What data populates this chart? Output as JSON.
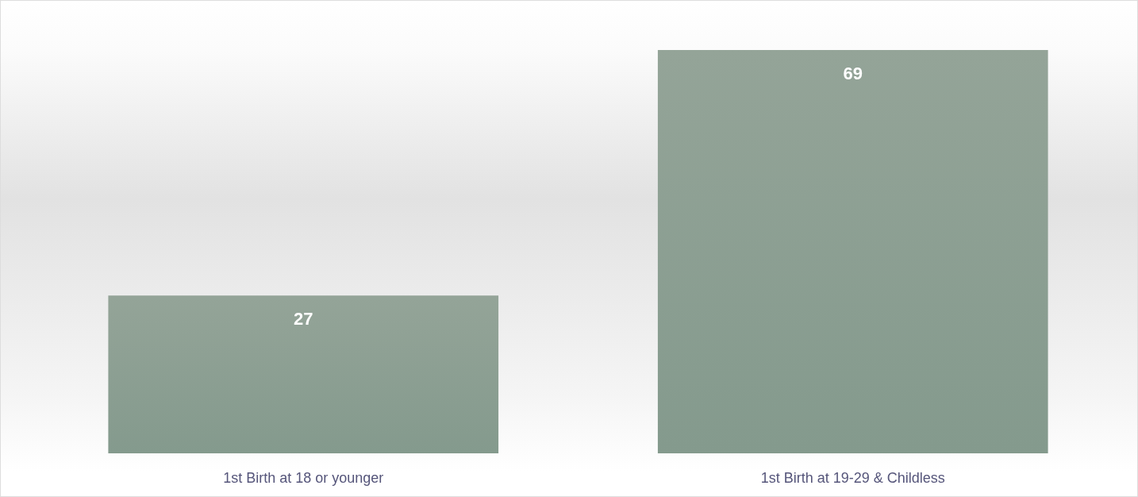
{
  "chart_data": {
    "type": "bar",
    "categories": [
      "1st Birth at 18 or younger",
      "1st Birth at 19-29 & Childless"
    ],
    "values": [
      27,
      69
    ],
    "color": "#849a8d",
    "data_labels": true
  }
}
